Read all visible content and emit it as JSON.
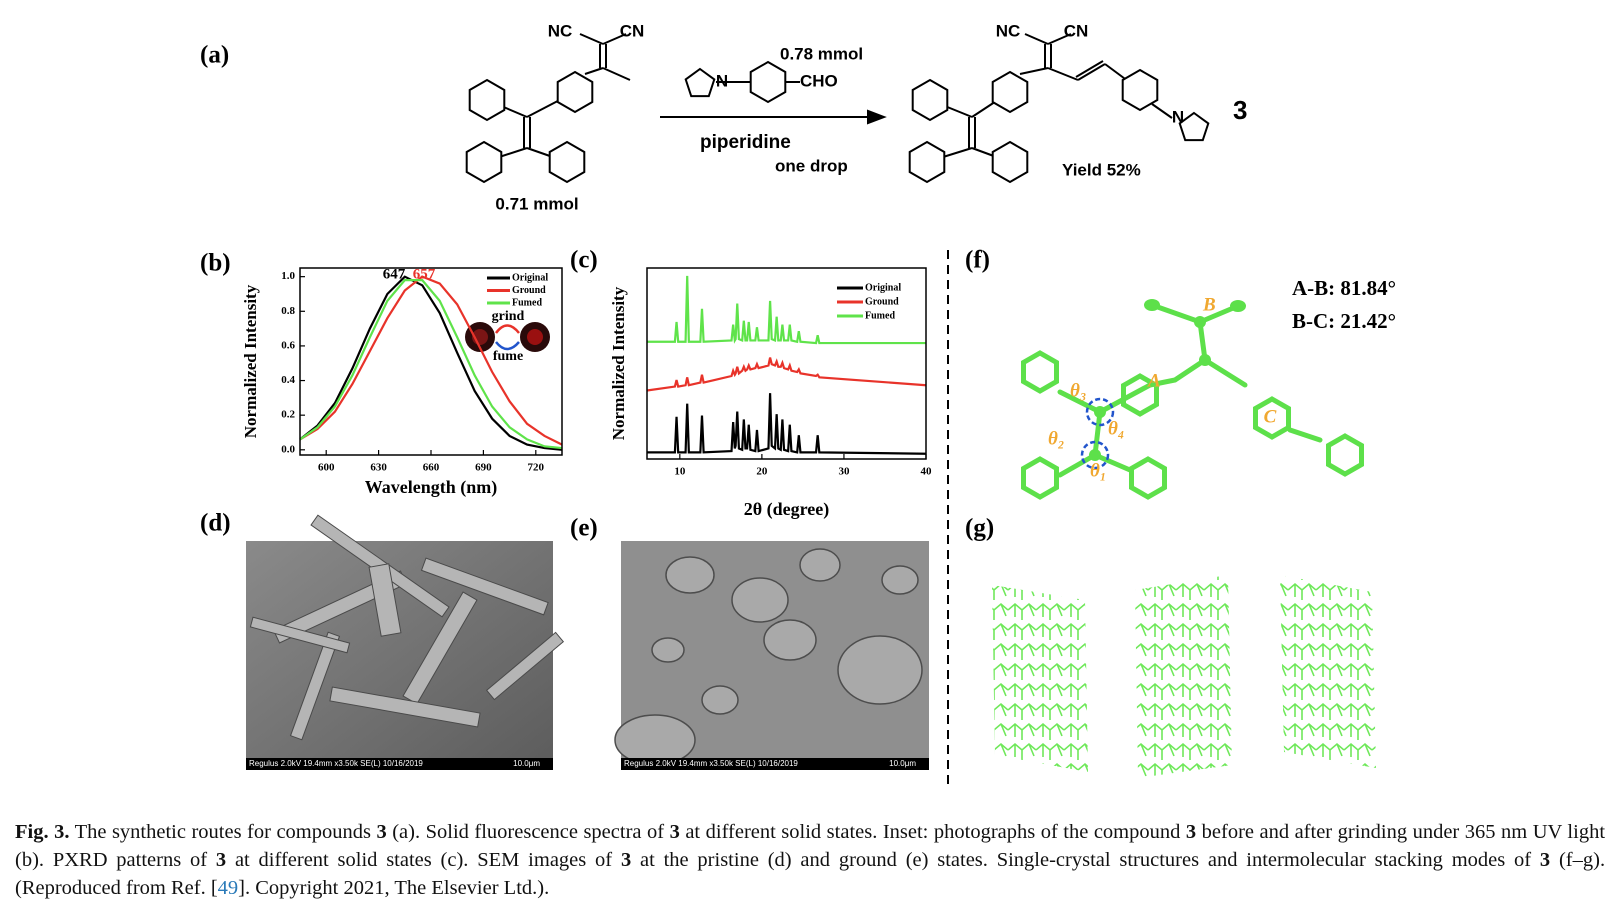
{
  "scheme": {
    "label": "(a)",
    "reactant": {
      "nc": "NC",
      "cn": "CN",
      "amount": "0.71 mmol"
    },
    "reagent": {
      "amount": "0.78 mmol",
      "n": "N",
      "cho": "CHO",
      "catalyst": "piperidine",
      "catalyst_amount": "one drop"
    },
    "product": {
      "nc": "NC",
      "cn": "CN",
      "n": "N",
      "number": "3",
      "yield": "Yield 52%"
    }
  },
  "chart_data": [
    {
      "type": "line",
      "label": "(b)",
      "xlabel": "Wavelength (nm)",
      "ylabel": "Normalized Intensity",
      "x": [
        585,
        595,
        605,
        615,
        625,
        635,
        645,
        655,
        665,
        675,
        685,
        695,
        705,
        715,
        725,
        735
      ],
      "series": [
        {
          "name": "Original",
          "color": "#000000",
          "values": [
            0.06,
            0.14,
            0.27,
            0.47,
            0.7,
            0.9,
            1.0,
            0.95,
            0.79,
            0.56,
            0.34,
            0.18,
            0.08,
            0.03,
            0.01,
            0.0
          ]
        },
        {
          "name": "Ground",
          "color": "#e8332a",
          "values": [
            0.06,
            0.12,
            0.22,
            0.38,
            0.57,
            0.76,
            0.92,
            1.0,
            0.96,
            0.84,
            0.65,
            0.45,
            0.28,
            0.15,
            0.08,
            0.03
          ]
        },
        {
          "name": "Fumed",
          "color": "#5fe34a",
          "values": [
            0.06,
            0.13,
            0.25,
            0.43,
            0.65,
            0.86,
            0.98,
            0.98,
            0.86,
            0.65,
            0.43,
            0.25,
            0.13,
            0.06,
            0.02,
            0.01
          ]
        }
      ],
      "xlim": [
        585,
        735
      ],
      "xticks": [
        600,
        630,
        660,
        690,
        720
      ],
      "ylim": [
        -0.03,
        1.05
      ],
      "yticks": [
        {
          "value": 0,
          "label": "0.0"
        },
        0.2,
        0.4,
        0.6,
        0.8,
        {
          "value": 1,
          "label": "1.0"
        }
      ],
      "legend": "upper right",
      "annotations": [
        "647",
        "657"
      ],
      "inset": [
        "grind",
        "fume"
      ]
    },
    {
      "type": "line",
      "label": "(c)",
      "xlabel": "2θ (degree)",
      "ylabel": "Normalized Intensity",
      "x": [
        6,
        9.4,
        9.6,
        9.8,
        10.7,
        10.9,
        11.1,
        12.5,
        12.7,
        12.9,
        16.3,
        16.5,
        16.7,
        16.8,
        17.0,
        17.2,
        17.6,
        17.8,
        18.0,
        18.2,
        18.4,
        18.6,
        19.2,
        19.4,
        19.6,
        20.8,
        21.0,
        21.2,
        21.6,
        21.8,
        22.0,
        22.3,
        22.5,
        22.7,
        23.2,
        23.4,
        23.6,
        24.3,
        24.5,
        24.7,
        26.6,
        26.8,
        27.0,
        40
      ],
      "series": [
        {
          "name": "Original",
          "color": "#000000",
          "values": [
            0.05,
            0.05,
            0.32,
            0.05,
            0.05,
            0.42,
            0.05,
            0.05,
            0.33,
            0.05,
            0.06,
            0.28,
            0.08,
            0.1,
            0.36,
            0.08,
            0.07,
            0.3,
            0.08,
            0.08,
            0.26,
            0.07,
            0.06,
            0.22,
            0.06,
            0.08,
            0.5,
            0.1,
            0.08,
            0.34,
            0.08,
            0.07,
            0.3,
            0.07,
            0.06,
            0.26,
            0.06,
            0.05,
            0.18,
            0.05,
            0.05,
            0.18,
            0.05,
            0.04
          ]
        },
        {
          "name": "Ground",
          "color": "#e8332a",
          "values": [
            0.52,
            0.55,
            0.6,
            0.55,
            0.56,
            0.62,
            0.56,
            0.58,
            0.64,
            0.58,
            0.63,
            0.67,
            0.64,
            0.65,
            0.7,
            0.65,
            0.67,
            0.7,
            0.67,
            0.68,
            0.71,
            0.68,
            0.69,
            0.72,
            0.69,
            0.71,
            0.77,
            0.72,
            0.71,
            0.74,
            0.7,
            0.7,
            0.73,
            0.69,
            0.68,
            0.71,
            0.67,
            0.66,
            0.68,
            0.65,
            0.63,
            0.64,
            0.62,
            0.56
          ]
        },
        {
          "name": "Fumed",
          "color": "#5fe34a",
          "values": [
            0.89,
            0.89,
            1.04,
            0.89,
            0.89,
            1.39,
            0.89,
            0.89,
            1.14,
            0.89,
            0.9,
            1.02,
            0.9,
            0.91,
            1.18,
            0.91,
            0.9,
            1.05,
            0.9,
            0.9,
            1.04,
            0.9,
            0.9,
            1.0,
            0.9,
            0.9,
            1.2,
            0.91,
            0.9,
            1.08,
            0.9,
            0.9,
            1.02,
            0.9,
            0.9,
            1.02,
            0.9,
            0.89,
            0.97,
            0.89,
            0.88,
            0.94,
            0.88,
            0.88
          ]
        }
      ],
      "xlim": [
        6,
        40
      ],
      "xticks": [
        10,
        20,
        30,
        40
      ],
      "ylim": [
        0,
        1.45
      ],
      "legend": "upper right"
    }
  ],
  "sem": {
    "d": {
      "label": "(d)",
      "info": "Regulus 2.0kV 19.4mm x3.50k SE(L) 10/16/2019",
      "scale": "10.0μm"
    },
    "e": {
      "label": "(e)",
      "info": "Regulus 2.0kV 19.4mm x3.50k SE(L) 10/16/2019",
      "scale": "10.0μm"
    }
  },
  "crystal": {
    "label": "(f)",
    "angles": [
      "A-B: 81.84°",
      "B-C: 21.42°"
    ],
    "rings": [
      "A",
      "B",
      "C"
    ],
    "torsions": [
      "θ₃",
      "θ₄",
      "θ₂",
      "θ₁"
    ]
  },
  "stacking": {
    "label": "(g)"
  },
  "caption": {
    "label": "Fig. 3.",
    "runs": [
      "The synthetic routes for compounds",
      "3",
      "(a). Solid fluorescence spectra of",
      "3",
      "at different solid states. Inset: photographs of the compound",
      "3",
      "before and after grinding under 365 nm UV light (b). PXRD patterns of",
      "3",
      "at different solid states (c). SEM images of",
      "3",
      "at the pristine (d) and ground (e) states. Single-crystal structures and intermolecular stacking modes of",
      "3",
      "(f–g). (Reproduced from Ref. [",
      "49",
      "]. Copyright 2021, The Elsevier Ltd.)."
    ]
  }
}
